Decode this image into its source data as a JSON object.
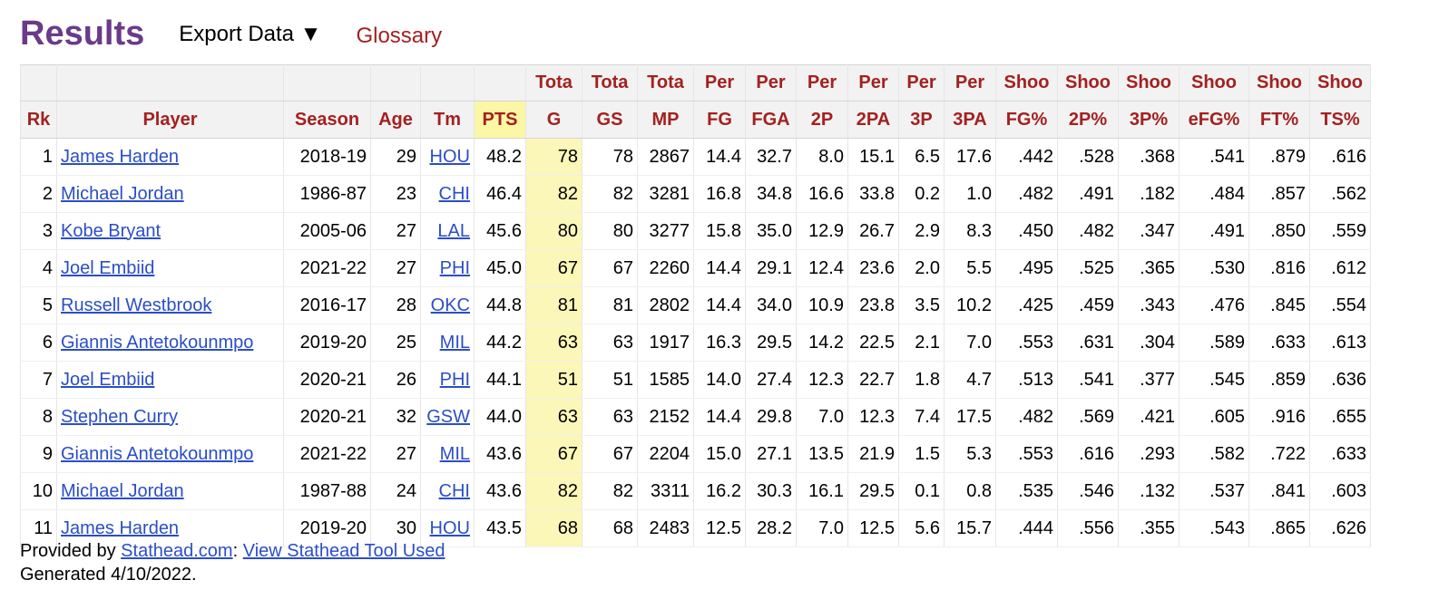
{
  "header": {
    "title": "Results",
    "export_label": "Export Data ▼",
    "glossary_label": "Glossary"
  },
  "table": {
    "over_headers": [
      "",
      "",
      "",
      "",
      "",
      "",
      "Tota",
      "Tota",
      "Tota",
      "Per",
      "Per",
      "Per",
      "Per",
      "Per",
      "Per",
      "Shoo",
      "Shoo",
      "Shoo",
      "Shoo",
      "Shoo",
      "Shoo"
    ],
    "headers": [
      "Rk",
      "Player",
      "Season",
      "Age",
      "Tm",
      "PTS",
      "G",
      "GS",
      "MP",
      "FG",
      "FGA",
      "2P",
      "2PA",
      "3P",
      "3PA",
      "FG%",
      "2P%",
      "3P%",
      "eFG%",
      "FT%",
      "TS%"
    ],
    "rows": [
      [
        "1",
        "James Harden",
        "2018-19",
        "29",
        "HOU",
        "48.2",
        "78",
        "78",
        "2867",
        "14.4",
        "32.7",
        "8.0",
        "15.1",
        "6.5",
        "17.6",
        ".442",
        ".528",
        ".368",
        ".541",
        ".879",
        ".616"
      ],
      [
        "2",
        "Michael Jordan",
        "1986-87",
        "23",
        "CHI",
        "46.4",
        "82",
        "82",
        "3281",
        "16.8",
        "34.8",
        "16.6",
        "33.8",
        "0.2",
        "1.0",
        ".482",
        ".491",
        ".182",
        ".484",
        ".857",
        ".562"
      ],
      [
        "3",
        "Kobe Bryant",
        "2005-06",
        "27",
        "LAL",
        "45.6",
        "80",
        "80",
        "3277",
        "15.8",
        "35.0",
        "12.9",
        "26.7",
        "2.9",
        "8.3",
        ".450",
        ".482",
        ".347",
        ".491",
        ".850",
        ".559"
      ],
      [
        "4",
        "Joel Embiid",
        "2021-22",
        "27",
        "PHI",
        "45.0",
        "67",
        "67",
        "2260",
        "14.4",
        "29.1",
        "12.4",
        "23.6",
        "2.0",
        "5.5",
        ".495",
        ".525",
        ".365",
        ".530",
        ".816",
        ".612"
      ],
      [
        "5",
        "Russell Westbrook",
        "2016-17",
        "28",
        "OKC",
        "44.8",
        "81",
        "81",
        "2802",
        "14.4",
        "34.0",
        "10.9",
        "23.8",
        "3.5",
        "10.2",
        ".425",
        ".459",
        ".343",
        ".476",
        ".845",
        ".554"
      ],
      [
        "6",
        "Giannis Antetokounmpo",
        "2019-20",
        "25",
        "MIL",
        "44.2",
        "63",
        "63",
        "1917",
        "16.3",
        "29.5",
        "14.2",
        "22.5",
        "2.1",
        "7.0",
        ".553",
        ".631",
        ".304",
        ".589",
        ".633",
        ".613"
      ],
      [
        "7",
        "Joel Embiid",
        "2020-21",
        "26",
        "PHI",
        "44.1",
        "51",
        "51",
        "1585",
        "14.0",
        "27.4",
        "12.3",
        "22.7",
        "1.8",
        "4.7",
        ".513",
        ".541",
        ".377",
        ".545",
        ".859",
        ".636"
      ],
      [
        "8",
        "Stephen Curry",
        "2020-21",
        "32",
        "GSW",
        "44.0",
        "63",
        "63",
        "2152",
        "14.4",
        "29.8",
        "7.0",
        "12.3",
        "7.4",
        "17.5",
        ".482",
        ".569",
        ".421",
        ".605",
        ".916",
        ".655"
      ],
      [
        "9",
        "Giannis Antetokounmpo",
        "2021-22",
        "27",
        "MIL",
        "43.6",
        "67",
        "67",
        "2204",
        "15.0",
        "27.1",
        "13.5",
        "21.9",
        "1.5",
        "5.3",
        ".553",
        ".616",
        ".293",
        ".582",
        ".722",
        ".633"
      ],
      [
        "10",
        "Michael Jordan",
        "1987-88",
        "24",
        "CHI",
        "43.6",
        "82",
        "82",
        "3311",
        "16.2",
        "30.3",
        "16.1",
        "29.5",
        "0.1",
        "0.8",
        ".535",
        ".546",
        ".132",
        ".537",
        ".841",
        ".603"
      ],
      [
        "11",
        "James Harden",
        "2019-20",
        "30",
        "HOU",
        "43.5",
        "68",
        "68",
        "2483",
        "12.5",
        "28.2",
        "7.0",
        "12.5",
        "5.6",
        "15.7",
        ".444",
        ".556",
        ".355",
        ".543",
        ".865",
        ".626"
      ]
    ]
  },
  "footer": {
    "provided_by": "Provided by ",
    "stathead_link": "Stathead.com",
    "separator": ": ",
    "tool_link": "View Stathead Tool Used",
    "generated": "Generated 4/10/2022."
  },
  "colors": {
    "title": "#6b3a8a",
    "header_text": "#a3211f",
    "link": "#2b4ec6",
    "sorted_column": "#fbf7b8"
  }
}
